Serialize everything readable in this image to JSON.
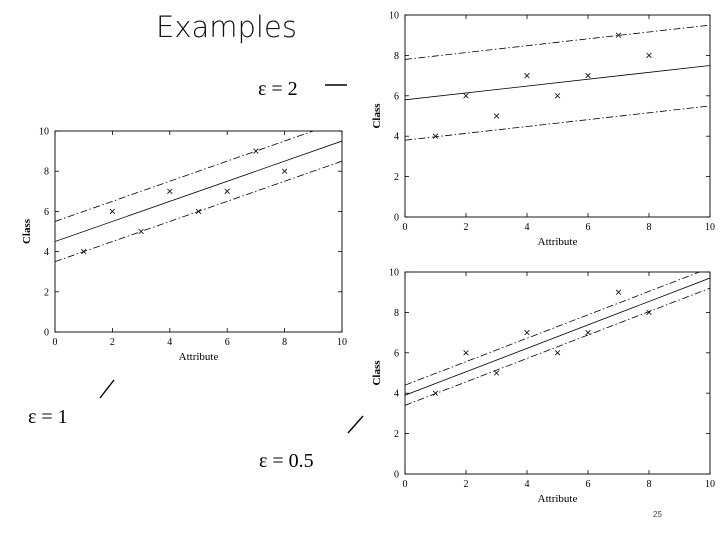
{
  "slide": {
    "title": "Examples",
    "page_number": "25",
    "epsilon_labels": [
      "ε = 2",
      "ε = 1",
      "ε = 0.5"
    ]
  },
  "chart_data": [
    {
      "type": "scatter",
      "epsilon": "ε = 1",
      "title": "",
      "xlabel": "Attribute",
      "ylabel": "Class",
      "xlim": [
        0,
        10
      ],
      "ylim": [
        0,
        10
      ],
      "xticks": [
        0,
        2,
        4,
        6,
        8,
        10
      ],
      "yticks": [
        0,
        2,
        4,
        6,
        8,
        10
      ],
      "grid": false,
      "points": [
        [
          1,
          4
        ],
        [
          2,
          6
        ],
        [
          3,
          5
        ],
        [
          4,
          7
        ],
        [
          5,
          6
        ],
        [
          6,
          7
        ],
        [
          7,
          9
        ],
        [
          8,
          8
        ]
      ],
      "lines": [
        {
          "style": "solid",
          "x": [
            0,
            10
          ],
          "y": [
            4.5,
            9.5
          ]
        },
        {
          "style": "dashdot",
          "x": [
            0,
            10
          ],
          "y": [
            5.5,
            10.5
          ]
        },
        {
          "style": "dashdot",
          "x": [
            0,
            10
          ],
          "y": [
            3.5,
            8.5
          ]
        }
      ]
    },
    {
      "type": "scatter",
      "epsilon": "ε = 2",
      "title": "",
      "xlabel": "Attribute",
      "ylabel": "Class",
      "xlim": [
        0,
        10
      ],
      "ylim": [
        0,
        10
      ],
      "xticks": [
        0,
        2,
        4,
        6,
        8,
        10
      ],
      "yticks": [
        0,
        2,
        4,
        6,
        8,
        10
      ],
      "grid": false,
      "points": [
        [
          1,
          4
        ],
        [
          2,
          6
        ],
        [
          3,
          5
        ],
        [
          4,
          7
        ],
        [
          5,
          6
        ],
        [
          6,
          7
        ],
        [
          7,
          9
        ],
        [
          8,
          8
        ]
      ],
      "lines": [
        {
          "style": "solid",
          "x": [
            0,
            10
          ],
          "y": [
            5.8,
            7.5
          ]
        },
        {
          "style": "dashdot",
          "x": [
            0,
            10
          ],
          "y": [
            7.8,
            9.5
          ]
        },
        {
          "style": "dashdot",
          "x": [
            0,
            10
          ],
          "y": [
            3.8,
            5.5
          ]
        }
      ]
    },
    {
      "type": "scatter",
      "epsilon": "ε = 0.5",
      "title": "",
      "xlabel": "Attribute",
      "ylabel": "Class",
      "xlim": [
        0,
        10
      ],
      "ylim": [
        0,
        10
      ],
      "xticks": [
        0,
        2,
        4,
        6,
        8,
        10
      ],
      "yticks": [
        0,
        2,
        4,
        6,
        8,
        10
      ],
      "grid": false,
      "points": [
        [
          1,
          4
        ],
        [
          2,
          6
        ],
        [
          3,
          5
        ],
        [
          4,
          7
        ],
        [
          5,
          6
        ],
        [
          6,
          7
        ],
        [
          7,
          9
        ],
        [
          8,
          8
        ]
      ],
      "lines": [
        {
          "style": "solid",
          "x": [
            0,
            10
          ],
          "y": [
            3.9,
            9.7
          ]
        },
        {
          "style": "dashdot",
          "x": [
            0,
            10
          ],
          "y": [
            4.4,
            10.2
          ]
        },
        {
          "style": "dashdot",
          "x": [
            0,
            10
          ],
          "y": [
            3.4,
            9.2
          ]
        }
      ]
    }
  ]
}
